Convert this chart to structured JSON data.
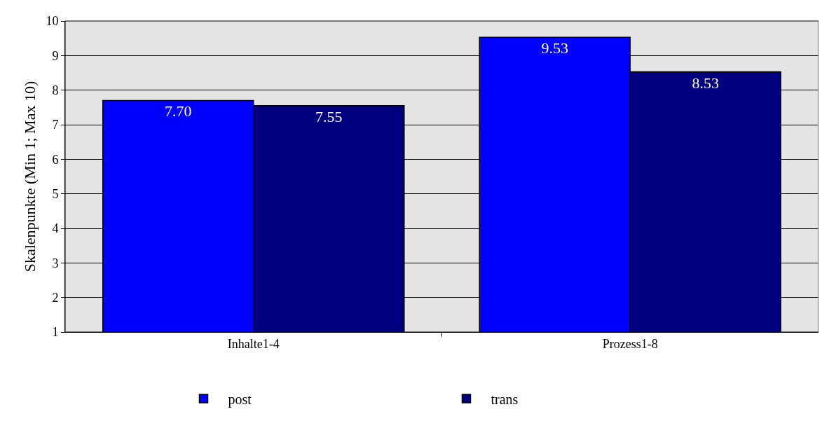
{
  "chart_data": {
    "type": "bar",
    "ylabel": "Skalenpunkte (Min 1; Max 10)",
    "categories": [
      "Inhalte1-4",
      "Prozess1-8"
    ],
    "series": [
      {
        "name": "post",
        "color": "#0000ff",
        "values": [
          7.7,
          9.53
        ],
        "value_labels": [
          "7.70",
          "9.53"
        ]
      },
      {
        "name": "trans",
        "color": "#000080",
        "values": [
          7.55,
          8.53
        ],
        "value_labels": [
          "7.55",
          "8.53"
        ]
      }
    ],
    "ylim": [
      1,
      10
    ],
    "yticks": [
      1,
      2,
      3,
      4,
      5,
      6,
      7,
      8,
      9,
      10
    ],
    "grid": "y",
    "legend": "bottom"
  }
}
